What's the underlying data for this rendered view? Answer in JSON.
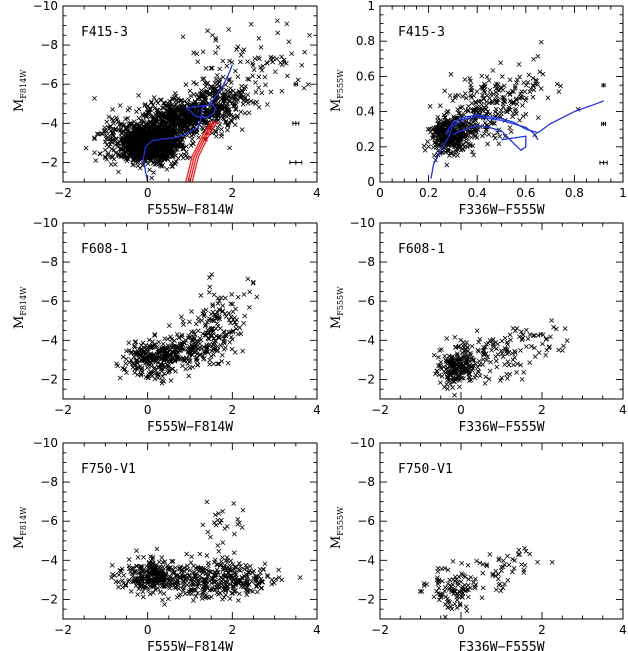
{
  "chart_data": [
    {
      "id": "p1",
      "type": "scatter",
      "title": "F415-3",
      "xlabel": "F555W−F814W",
      "ylabel_main": "M",
      "ylabel_sub": "F814W",
      "xlim": [
        -2,
        4
      ],
      "ylim": [
        -1,
        -10
      ],
      "xticks": [
        -2,
        0,
        2,
        4
      ],
      "xtick_labels": [
        "−2",
        "0",
        "2",
        "4"
      ],
      "yticks": [
        -10,
        -8,
        -6,
        -4,
        -2
      ],
      "ytick_labels": [
        "−10",
        "−8",
        "−6",
        "−4",
        "−2"
      ],
      "points": {
        "n": 2200,
        "seed": 11,
        "clusters": [
          {
            "w": 0.5,
            "cx": 0.1,
            "cy": -3.0,
            "sx": 0.35,
            "sy": 0.5
          },
          {
            "w": 0.27,
            "cx": 0.9,
            "cy": -4.3,
            "sx": 0.5,
            "sy": 0.45
          },
          {
            "w": 0.1,
            "cx": 1.7,
            "cy": -5.3,
            "sx": 0.4,
            "sy": 0.5
          },
          {
            "w": 0.09,
            "cx": -0.4,
            "cy": -3.0,
            "sx": 0.45,
            "sy": 0.7
          },
          {
            "w": 0.04,
            "cx": 2.4,
            "cy": -7.0,
            "sx": 0.7,
            "sy": 1.0
          }
        ]
      },
      "curves": [
        {
          "name": "isochrone",
          "color": "#2233dd",
          "x": [
            0.0,
            -0.05,
            -0.1,
            -0.05,
            0.1,
            0.35,
            0.6,
            0.85,
            1.0,
            1.2,
            1.25,
            1.3,
            1.45,
            1.55,
            1.8,
            1.95,
            2.0
          ],
          "y": [
            -1.0,
            -1.5,
            -2.2,
            -2.8,
            -3.1,
            -3.2,
            -3.25,
            -3.4,
            -3.6,
            -3.8,
            -4.2,
            -4.8,
            -5.0,
            -5.2,
            -6.0,
            -6.7,
            -7.0
          ]
        },
        {
          "name": "isochrone-loop",
          "color": "#2233dd",
          "x": [
            0.9,
            1.1,
            1.35,
            1.5,
            1.6,
            1.55,
            1.4,
            1.15,
            0.9
          ],
          "y": [
            -4.8,
            -4.85,
            -4.9,
            -5.0,
            -4.8,
            -4.5,
            -4.3,
            -4.35,
            -4.8
          ]
        },
        {
          "name": "track-1",
          "color": "#ee2222",
          "x": [
            0.9,
            1.05,
            1.3,
            1.5
          ],
          "y": [
            -1.0,
            -2.3,
            -3.4,
            -4.1
          ]
        },
        {
          "name": "track-2",
          "color": "#ee2222",
          "x": [
            0.95,
            1.1,
            1.35,
            1.55
          ],
          "y": [
            -1.0,
            -2.3,
            -3.4,
            -4.1
          ]
        },
        {
          "name": "track-3",
          "color": "#ee2222",
          "x": [
            1.0,
            1.15,
            1.4,
            1.6
          ],
          "y": [
            -1.0,
            -2.3,
            -3.4,
            -4.1
          ]
        },
        {
          "name": "track-4",
          "color": "#ee2222",
          "x": [
            1.05,
            1.2,
            1.45,
            1.65
          ],
          "y": [
            -1.0,
            -2.3,
            -3.4,
            -4.1
          ]
        }
      ],
      "error_bars": [
        {
          "x": 3.5,
          "y": -6.0,
          "xerr": 0.04,
          "yerr": 0.12
        },
        {
          "x": 3.5,
          "y": -4.0,
          "xerr": 0.07,
          "yerr": 0.12
        },
        {
          "x": 3.5,
          "y": -2.0,
          "xerr": 0.14,
          "yerr": 0.12
        }
      ]
    },
    {
      "id": "p2",
      "type": "scatter",
      "title": "F415-3",
      "xlabel": "F336W−F555W",
      "ylabel_main": "M",
      "ylabel_sub": "F555W",
      "xlim": [
        0,
        1
      ],
      "ylim": [
        0,
        1
      ],
      "xticks": [
        0,
        0.2,
        0.4,
        0.6,
        0.8,
        1
      ],
      "xtick_labels": [
        "0",
        "0.2",
        "0.4",
        "0.6",
        "0.8",
        "1"
      ],
      "yticks": [
        0,
        0.2,
        0.4,
        0.6,
        0.8,
        1
      ],
      "ytick_labels": [
        "0",
        "0.2",
        "0.4",
        "0.6",
        "0.8",
        "1"
      ],
      "points": {
        "n": 620,
        "seed": 23,
        "clusters": [
          {
            "w": 0.55,
            "cx": 0.29,
            "cy": 0.26,
            "sx": 0.04,
            "sy": 0.05
          },
          {
            "w": 0.3,
            "cx": 0.38,
            "cy": 0.38,
            "sx": 0.07,
            "sy": 0.08
          },
          {
            "w": 0.15,
            "cx": 0.55,
            "cy": 0.5,
            "sx": 0.09,
            "sy": 0.09
          }
        ]
      },
      "curves": [
        {
          "name": "track-a",
          "color": "#2233dd",
          "x": [
            0.21,
            0.22,
            0.25,
            0.28,
            0.3,
            0.35,
            0.4,
            0.45,
            0.5,
            0.55,
            0.6,
            0.63,
            0.65
          ],
          "y": [
            0.02,
            0.1,
            0.18,
            0.25,
            0.32,
            0.36,
            0.37,
            0.36,
            0.35,
            0.33,
            0.31,
            0.28,
            0.24
          ]
        },
        {
          "name": "track-b",
          "color": "#2233dd",
          "x": [
            0.27,
            0.3,
            0.35,
            0.4,
            0.45,
            0.5,
            0.55,
            0.6,
            0.65,
            0.7,
            0.8,
            0.9,
            0.92
          ],
          "y": [
            0.27,
            0.34,
            0.37,
            0.38,
            0.37,
            0.36,
            0.34,
            0.3,
            0.28,
            0.33,
            0.4,
            0.45,
            0.46
          ]
        },
        {
          "name": "track-c",
          "color": "#2233dd",
          "x": [
            0.3,
            0.35,
            0.4,
            0.45,
            0.5,
            0.55,
            0.58,
            0.6,
            0.6,
            0.55,
            0.5
          ],
          "y": [
            0.27,
            0.3,
            0.32,
            0.31,
            0.29,
            0.22,
            0.18,
            0.2,
            0.26,
            0.25,
            0.24
          ]
        }
      ],
      "error_bars": [
        {
          "x": 0.92,
          "y": 0.55,
          "xerr": 0.006,
          "yerr": 0.012
        },
        {
          "x": 0.92,
          "y": 0.33,
          "xerr": 0.008,
          "yerr": 0.012
        },
        {
          "x": 0.92,
          "y": 0.11,
          "xerr": 0.015,
          "yerr": 0.012
        }
      ]
    },
    {
      "id": "p3",
      "type": "scatter",
      "title": "F608-1",
      "xlabel": "F555W−F814W",
      "ylabel_main": "M",
      "ylabel_sub": "F814W",
      "xlim": [
        -2,
        4
      ],
      "ylim": [
        -1,
        -10
      ],
      "xticks": [
        -2,
        0,
        2,
        4
      ],
      "xtick_labels": [
        "−2",
        "0",
        "2",
        "4"
      ],
      "yticks": [
        -10,
        -8,
        -6,
        -4,
        -2
      ],
      "ytick_labels": [
        "−10",
        "−8",
        "−6",
        "−4",
        "−2"
      ],
      "points": {
        "n": 560,
        "seed": 37,
        "clusters": [
          {
            "w": 0.45,
            "cx": 0.1,
            "cy": -3.0,
            "sx": 0.35,
            "sy": 0.45
          },
          {
            "w": 0.3,
            "cx": 1.0,
            "cy": -3.6,
            "sx": 0.45,
            "sy": 0.5
          },
          {
            "w": 0.2,
            "cx": 1.6,
            "cy": -4.6,
            "sx": 0.35,
            "sy": 0.6
          },
          {
            "w": 0.05,
            "cx": 1.9,
            "cy": -6.3,
            "sx": 0.4,
            "sy": 0.6
          }
        ]
      },
      "curves": [],
      "error_bars": []
    },
    {
      "id": "p4",
      "type": "scatter",
      "title": "F608-1",
      "xlabel": "F336W−F555W",
      "ylabel_main": "M",
      "ylabel_sub": "F555W",
      "xlim": [
        -2,
        4
      ],
      "ylim": [
        -1,
        -10
      ],
      "xticks": [
        -2,
        0,
        2,
        4
      ],
      "xtick_labels": [
        "−2",
        "0",
        "2",
        "4"
      ],
      "yticks": [
        -10,
        -8,
        -6,
        -4,
        -2
      ],
      "ytick_labels": [
        "−10",
        "−8",
        "−6",
        "−4",
        "−2"
      ],
      "points": {
        "n": 330,
        "seed": 41,
        "clusters": [
          {
            "w": 0.6,
            "cx": -0.1,
            "cy": -2.6,
            "sx": 0.25,
            "sy": 0.55
          },
          {
            "w": 0.28,
            "cx": 0.8,
            "cy": -3.3,
            "sx": 0.45,
            "sy": 0.55
          },
          {
            "w": 0.12,
            "cx": 1.8,
            "cy": -4.0,
            "sx": 0.4,
            "sy": 0.5
          }
        ]
      },
      "curves": [],
      "error_bars": []
    },
    {
      "id": "p5",
      "type": "scatter",
      "title": "F750-V1",
      "xlabel": "F555W−F814W",
      "ylabel_main": "M",
      "ylabel_sub": "F814W",
      "xlim": [
        -2,
        4
      ],
      "ylim": [
        -1,
        -10
      ],
      "xticks": [
        -2,
        0,
        2,
        4
      ],
      "xtick_labels": [
        "−2",
        "0",
        "2",
        "4"
      ],
      "yticks": [
        -10,
        -8,
        -6,
        -4,
        -2
      ],
      "ytick_labels": [
        "−10",
        "−8",
        "−6",
        "−4",
        "−2"
      ],
      "points": {
        "n": 660,
        "seed": 53,
        "clusters": [
          {
            "w": 0.4,
            "cx": 0.1,
            "cy": -3.2,
            "sx": 0.4,
            "sy": 0.45
          },
          {
            "w": 0.4,
            "cx": 1.4,
            "cy": -3.0,
            "sx": 0.6,
            "sy": 0.45
          },
          {
            "w": 0.15,
            "cx": 2.3,
            "cy": -3.0,
            "sx": 0.4,
            "sy": 0.35
          },
          {
            "w": 0.05,
            "cx": 1.8,
            "cy": -5.5,
            "sx": 0.3,
            "sy": 0.9
          }
        ]
      },
      "curves": [],
      "error_bars": []
    },
    {
      "id": "p6",
      "type": "scatter",
      "title": "F750-V1",
      "xlabel": "F336W−F555W",
      "ylabel_main": "M",
      "ylabel_sub": "F555W",
      "xlim": [
        -2,
        4
      ],
      "ylim": [
        -1,
        -10
      ],
      "xticks": [
        -2,
        0,
        2,
        4
      ],
      "xtick_labels": [
        "−2",
        "0",
        "2",
        "4"
      ],
      "yticks": [
        -10,
        -8,
        -6,
        -4,
        -2
      ],
      "ytick_labels": [
        "−10",
        "−8",
        "−6",
        "−4",
        "−2"
      ],
      "points": {
        "n": 150,
        "seed": 67,
        "clusters": [
          {
            "w": 0.6,
            "cx": -0.2,
            "cy": -2.5,
            "sx": 0.3,
            "sy": 0.5
          },
          {
            "w": 0.3,
            "cx": 0.6,
            "cy": -3.4,
            "sx": 0.4,
            "sy": 0.5
          },
          {
            "w": 0.1,
            "cx": 1.5,
            "cy": -4.0,
            "sx": 0.3,
            "sy": 0.4
          }
        ]
      },
      "curves": [],
      "error_bars": []
    }
  ]
}
